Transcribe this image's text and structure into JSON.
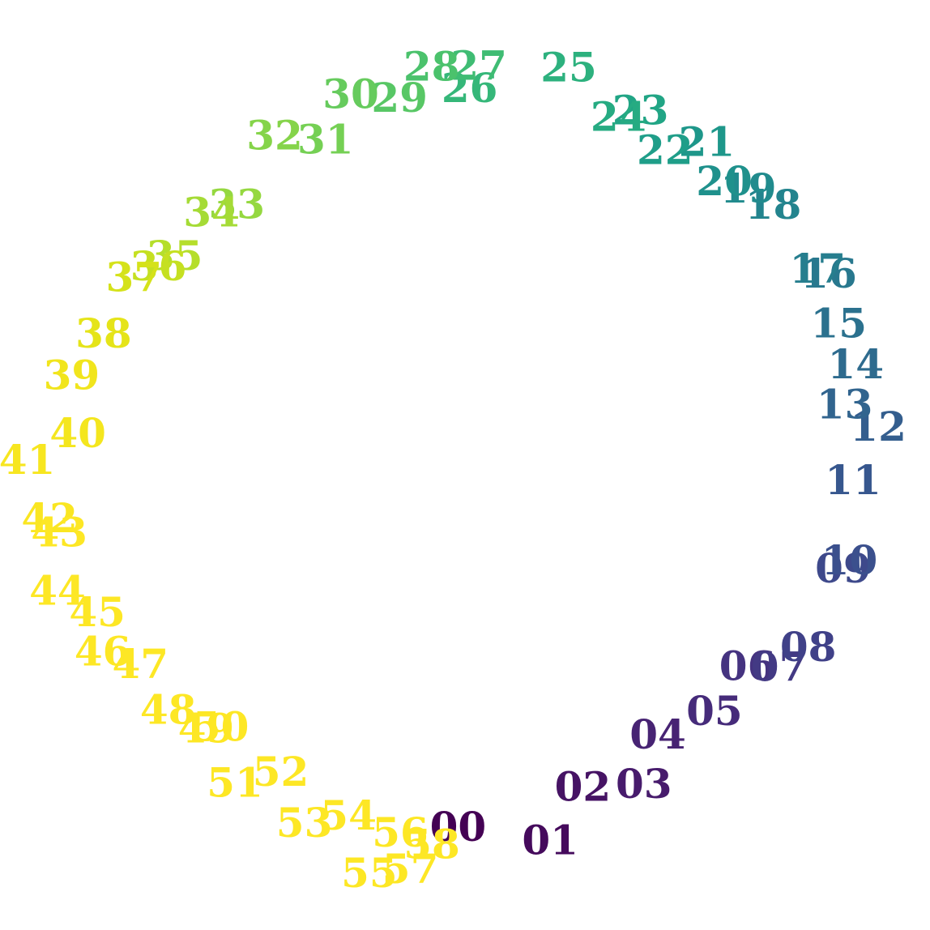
{
  "chart_data": {
    "type": "scatter",
    "title": "",
    "xlabel": "",
    "ylabel": "",
    "grid": false,
    "colormap": "viridis",
    "points": [
      {
        "label": "00",
        "angle": 268.9,
        "r": 0.95,
        "color": "#440154"
      },
      {
        "label": "01",
        "angle": 282.8,
        "r": 1.01,
        "color": "#450a5c"
      },
      {
        "label": "02",
        "angle": 290.1,
        "r": 0.9,
        "color": "#461364"
      },
      {
        "label": "03",
        "angle": 299.3,
        "r": 0.96,
        "color": "#471b6c"
      },
      {
        "label": "04",
        "angle": 305.6,
        "r": 0.87,
        "color": "#472373"
      },
      {
        "label": "05",
        "angle": 315.4,
        "r": 0.92,
        "color": "#462b7a"
      },
      {
        "label": "06",
        "angle": 324.6,
        "r": 0.91,
        "color": "#453380"
      },
      {
        "label": "07",
        "angle": 327.3,
        "r": 0.98,
        "color": "#433a84"
      },
      {
        "label": "08",
        "angle": 332.1,
        "r": 1.02,
        "color": "#404188"
      },
      {
        "label": "09",
        "angle": 344.7,
        "r": 1.03,
        "color": "#3e498b"
      },
      {
        "label": "10",
        "angle": 346.1,
        "r": 1.04,
        "color": "#3b508d"
      },
      {
        "label": "11",
        "angle": 357.8,
        "r": 1.02,
        "color": "#37578e"
      },
      {
        "label": "12",
        "angle": 5.3,
        "r": 1.09,
        "color": "#345e8e"
      },
      {
        "label": "13",
        "angle": 9.1,
        "r": 1.01,
        "color": "#31648e"
      },
      {
        "label": "14",
        "angle": 14.5,
        "r": 1.06,
        "color": "#2e6b8e"
      },
      {
        "label": "15",
        "angle": 20.8,
        "r": 1.05,
        "color": "#2b718e"
      },
      {
        "label": "16",
        "angle": 27.8,
        "r": 1.08,
        "color": "#28788e"
      },
      {
        "label": "17",
        "angle": 29.1,
        "r": 1.06,
        "color": "#267e8e"
      },
      {
        "label": "18",
        "angle": 40.2,
        "r": 1.06,
        "color": "#23848e"
      },
      {
        "label": "19",
        "angle": 44.3,
        "r": 1.04,
        "color": "#218b8d"
      },
      {
        "label": "20",
        "angle": 47.6,
        "r": 1.01,
        "color": "#1f918c"
      },
      {
        "label": "21",
        "angle": 53.2,
        "r": 1.06,
        "color": "#1e978a"
      },
      {
        "label": "22",
        "angle": 57.6,
        "r": 0.98,
        "color": "#1f9e89"
      },
      {
        "label": "23",
        "angle": 63.7,
        "r": 1.04,
        "color": "#21a585"
      },
      {
        "label": "24",
        "angle": 66.2,
        "r": 1.0,
        "color": "#26ab82"
      },
      {
        "label": "25",
        "angle": 75.4,
        "r": 1.08,
        "color": "#2db17e"
      },
      {
        "label": "26",
        "angle": 89.3,
        "r": 0.99,
        "color": "#35b779"
      },
      {
        "label": "27",
        "angle": 88.0,
        "r": 1.05,
        "color": "#3fbc73"
      },
      {
        "label": "28",
        "angle": 94.8,
        "r": 1.05,
        "color": "#4bc26c"
      },
      {
        "label": "29",
        "angle": 100.1,
        "r": 0.98,
        "color": "#58c765"
      },
      {
        "label": "30",
        "angle": 107.1,
        "r": 1.02,
        "color": "#66cb5d"
      },
      {
        "label": "31",
        "angle": 113.2,
        "r": 0.93,
        "color": "#75d054"
      },
      {
        "label": "32",
        "angle": 120.0,
        "r": 1.0,
        "color": "#85d44a"
      },
      {
        "label": "33",
        "angle": 131.2,
        "r": 0.91,
        "color": "#95d840"
      },
      {
        "label": "34",
        "angle": 135.1,
        "r": 0.94,
        "color": "#a5db36"
      },
      {
        "label": "35",
        "angle": 144.2,
        "r": 0.94,
        "color": "#b5de2b"
      },
      {
        "label": "36",
        "angle": 147.0,
        "r": 0.96,
        "color": "#c5e021"
      },
      {
        "label": "37",
        "angle": 150.4,
        "r": 1.0,
        "color": "#d5e21a"
      },
      {
        "label": "38",
        "angle": 160.0,
        "r": 1.01,
        "color": "#e5e419"
      },
      {
        "label": "39",
        "angle": 167.1,
        "r": 1.06,
        "color": "#f1e51d"
      },
      {
        "label": "40",
        "angle": 175.3,
        "r": 1.02,
        "color": "#f4e61e"
      },
      {
        "label": "41",
        "angle": 179.3,
        "r": 1.15,
        "color": "#f7e620"
      },
      {
        "label": "42",
        "angle": 187.3,
        "r": 1.1,
        "color": "#fae622"
      },
      {
        "label": "43",
        "angle": 189.4,
        "r": 1.08,
        "color": "#fde725"
      },
      {
        "label": "44",
        "angle": 197.1,
        "r": 1.12,
        "color": "#fde725"
      },
      {
        "label": "45",
        "angle": 201.8,
        "r": 1.04,
        "color": "#fde725"
      },
      {
        "label": "46",
        "angle": 207.2,
        "r": 1.07,
        "color": "#fde725"
      },
      {
        "label": "47",
        "angle": 211.5,
        "r": 1.0,
        "color": "#fde725"
      },
      {
        "label": "48",
        "angle": 219.5,
        "r": 1.01,
        "color": "#fde725"
      },
      {
        "label": "49",
        "angle": 225.5,
        "r": 0.97,
        "color": "#fde725"
      },
      {
        "label": "50",
        "angle": 227.0,
        "r": 0.94,
        "color": "#fde725"
      },
      {
        "label": "51",
        "angle": 234.1,
        "r": 1.03,
        "color": "#fde725"
      },
      {
        "label": "52",
        "angle": 239.0,
        "r": 0.94,
        "color": "#fde725"
      },
      {
        "label": "53",
        "angle": 245.8,
        "r": 1.03,
        "color": "#fde725"
      },
      {
        "label": "54",
        "angle": 251.6,
        "r": 0.97,
        "color": "#fde725"
      },
      {
        "label": "55",
        "angle": 256.8,
        "r": 1.1,
        "color": "#fde725"
      },
      {
        "label": "56",
        "angle": 260.0,
        "r": 0.98,
        "color": "#fde725"
      },
      {
        "label": "57",
        "angle": 262.3,
        "r": 1.07,
        "color": "#fde725"
      },
      {
        "label": "58",
        "angle": 265.0,
        "r": 1.0,
        "color": "#fde725"
      }
    ]
  }
}
